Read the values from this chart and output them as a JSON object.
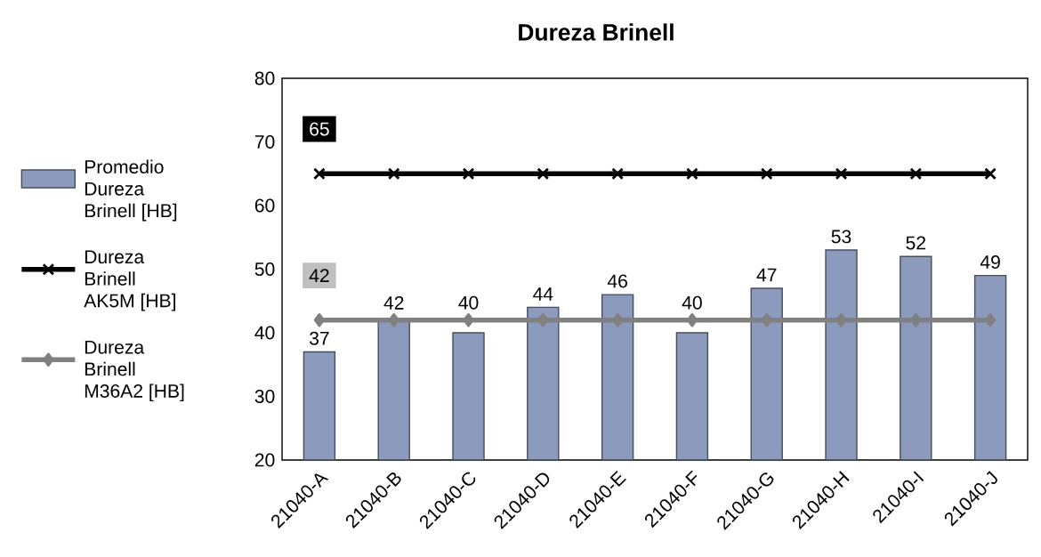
{
  "chart_data": {
    "type": "bar",
    "title": "Dureza Brinell",
    "categories": [
      "21040-A",
      "21040-B",
      "21040-C",
      "21040-D",
      "21040-E",
      "21040-F",
      "21040-G",
      "21040-H",
      "21040-I",
      "21040-J"
    ],
    "series": [
      {
        "name": "Promedio Dureza Brinell [HB]",
        "color": "#8c9bbd",
        "values": [
          37,
          42,
          40,
          44,
          46,
          40,
          47,
          53,
          52,
          49
        ]
      },
      {
        "name": "Dureza Brinell AK5M [HB]",
        "type": "line",
        "color": "#000000",
        "marker": "cross",
        "values": [
          65,
          65,
          65,
          65,
          65,
          65,
          65,
          65,
          65,
          65
        ],
        "value_labels": [
          "65",
          null,
          null,
          null,
          null,
          null,
          null,
          null,
          null,
          null
        ]
      },
      {
        "name": "Dureza Brinell M36A2 [HB]",
        "type": "line",
        "color": "#808080",
        "marker": "diamond",
        "values": [
          42,
          42,
          42,
          42,
          42,
          42,
          42,
          42,
          42,
          42
        ],
        "value_labels": [
          "42",
          null,
          null,
          null,
          null,
          null,
          null,
          null,
          null,
          null
        ]
      }
    ],
    "data_labels": true,
    "ylim": [
      20,
      80
    ],
    "yticks": [
      20,
      30,
      40,
      50,
      60,
      70,
      80
    ],
    "grid": false,
    "legend": "left"
  }
}
